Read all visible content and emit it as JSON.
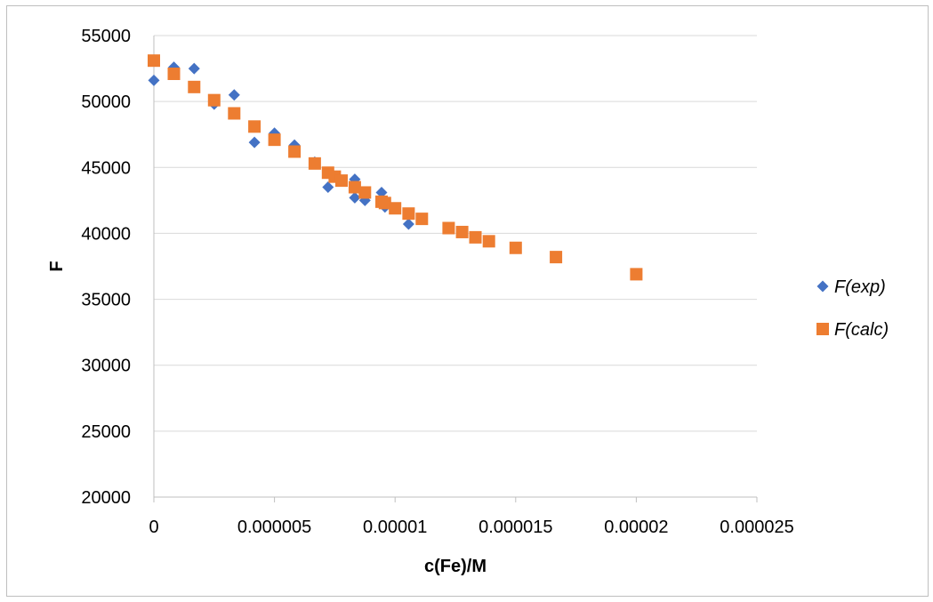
{
  "chart_data": {
    "type": "scatter",
    "title": "",
    "xlabel": "c(Fe)/M",
    "ylabel": "F",
    "xlim": [
      0,
      2.5e-05
    ],
    "ylim": [
      20000,
      55000
    ],
    "xticks": [
      0,
      5e-06,
      1e-05,
      1.5e-05,
      2e-05,
      2.5e-05
    ],
    "xtick_labels": [
      "0",
      "0.000005",
      "0.00001",
      "0.000015",
      "0.00002",
      "0.000025"
    ],
    "yticks": [
      20000,
      25000,
      30000,
      35000,
      40000,
      45000,
      50000,
      55000
    ],
    "ytick_labels": [
      "20000",
      "25000",
      "30000",
      "35000",
      "40000",
      "45000",
      "50000",
      "55000"
    ],
    "grid": "horizontal",
    "legend_position": "right",
    "series": [
      {
        "name": "F(exp)",
        "marker": "diamond",
        "color": "#4472C4",
        "points": [
          [
            0,
            51600
          ],
          [
            8.3e-07,
            52600
          ],
          [
            1.67e-06,
            52500
          ],
          [
            2.5e-06,
            49800
          ],
          [
            3.33e-06,
            50500
          ],
          [
            4.17e-06,
            46900
          ],
          [
            5e-06,
            47600
          ],
          [
            5.83e-06,
            46700
          ],
          [
            6.67e-06,
            45400
          ],
          [
            7.22e-06,
            43500
          ],
          [
            8.33e-06,
            44100
          ],
          [
            8.33e-06,
            42700
          ],
          [
            8.75e-06,
            42500
          ],
          [
            9.44e-06,
            43100
          ],
          [
            9.58e-06,
            42000
          ],
          [
            1.056e-05,
            40700
          ]
        ]
      },
      {
        "name": "F(calc)",
        "marker": "square",
        "color": "#ED7D31",
        "points": [
          [
            0,
            53100
          ],
          [
            8.3e-07,
            52100
          ],
          [
            1.67e-06,
            51100
          ],
          [
            2.5e-06,
            50100
          ],
          [
            3.33e-06,
            49100
          ],
          [
            4.17e-06,
            48100
          ],
          [
            5e-06,
            47100
          ],
          [
            5.83e-06,
            46200
          ],
          [
            6.67e-06,
            45300
          ],
          [
            7.22e-06,
            44600
          ],
          [
            7.5e-06,
            44300
          ],
          [
            7.78e-06,
            44000
          ],
          [
            8.33e-06,
            43500
          ],
          [
            8.75e-06,
            43100
          ],
          [
            9.44e-06,
            42400
          ],
          [
            9.58e-06,
            42300
          ],
          [
            1e-05,
            41900
          ],
          [
            1.056e-05,
            41500
          ],
          [
            1.111e-05,
            41100
          ],
          [
            1.222e-05,
            40400
          ],
          [
            1.278e-05,
            40100
          ],
          [
            1.333e-05,
            39700
          ],
          [
            1.389e-05,
            39400
          ],
          [
            1.5e-05,
            38900
          ],
          [
            1.667e-05,
            38200
          ],
          [
            2e-05,
            36900
          ]
        ]
      }
    ]
  }
}
